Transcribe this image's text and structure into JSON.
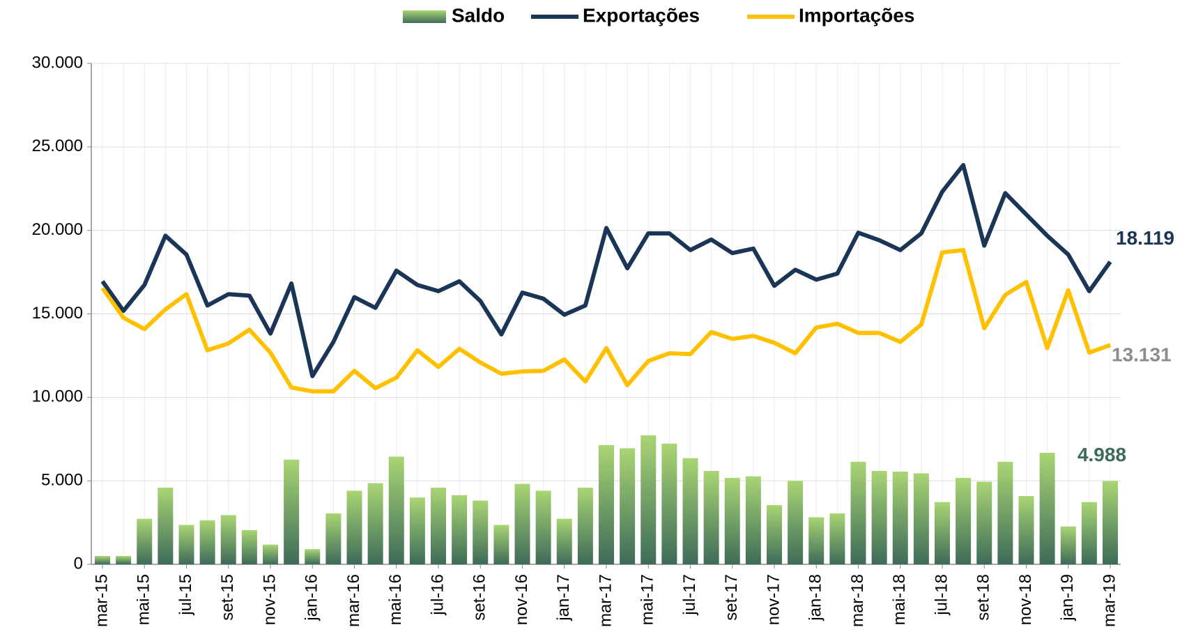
{
  "chart_data": {
    "type": "combo",
    "categories": [
      "mar-15",
      null,
      "mai-15",
      null,
      "jul-15",
      null,
      "set-15",
      null,
      "nov-15",
      null,
      "jan-16",
      null,
      "mar-16",
      null,
      "mai-16",
      null,
      "jul-16",
      null,
      "set-16",
      null,
      "nov-16",
      null,
      "jan-17",
      null,
      "mar-17",
      null,
      "mai-17",
      null,
      "jul-17",
      null,
      "set-17",
      null,
      "nov-17",
      null,
      "jan-18",
      null,
      "mar-18",
      null,
      "mai-18",
      null,
      "jul-18",
      null,
      "set-18",
      null,
      "nov-18",
      null,
      "jan-19",
      null,
      "mar-19"
    ],
    "series": [
      {
        "name": "Saldo",
        "type": "bar",
        "color": "#3d6b58",
        "color_top": "#a9d574",
        "values": [
          500,
          500,
          2730,
          4590,
          2360,
          2640,
          2950,
          2050,
          1180,
          6270,
          910,
          3050,
          4410,
          4860,
          6450,
          4000,
          4590,
          4140,
          3820,
          2360,
          4820,
          4410,
          2730,
          4590,
          7140,
          6950,
          7730,
          7230,
          6360,
          5590,
          5180,
          5270,
          3550,
          5000,
          2820,
          3050,
          6140,
          5590,
          5550,
          5450,
          3730,
          5180,
          4950,
          6140,
          4090,
          6680,
          2270,
          3730,
          4988
        ],
        "value_labels": [
          null,
          null,
          null,
          null,
          null,
          null,
          null,
          null,
          null,
          null,
          null,
          null,
          null,
          null,
          null,
          null,
          null,
          null,
          null,
          null,
          null,
          null,
          null,
          null,
          null,
          null,
          null,
          null,
          null,
          null,
          null,
          null,
          null,
          null,
          null,
          null,
          null,
          null,
          null,
          null,
          null,
          null,
          null,
          null,
          null,
          null,
          null,
          null,
          "4.988"
        ],
        "label_color": "#3d6b58"
      },
      {
        "name": "Exportações",
        "type": "line",
        "color": "#1b3557",
        "values": [
          16950,
          15180,
          16730,
          19680,
          18550,
          15500,
          16180,
          16090,
          13820,
          16820,
          11270,
          13320,
          16000,
          15360,
          17590,
          16730,
          16360,
          16950,
          15770,
          13770,
          16270,
          15910,
          14950,
          15500,
          20140,
          17730,
          19820,
          19820,
          18820,
          19450,
          18640,
          18910,
          16680,
          17640,
          17050,
          17410,
          19860,
          19410,
          18820,
          19820,
          22320,
          23910,
          19090,
          22230,
          20950,
          19680,
          18550,
          16360,
          18119
        ],
        "value_labels": [
          null,
          null,
          null,
          null,
          null,
          null,
          null,
          null,
          null,
          null,
          null,
          null,
          null,
          null,
          null,
          null,
          null,
          null,
          null,
          null,
          null,
          null,
          null,
          null,
          null,
          null,
          null,
          null,
          null,
          null,
          null,
          null,
          null,
          null,
          null,
          null,
          null,
          null,
          null,
          null,
          null,
          null,
          null,
          null,
          null,
          null,
          null,
          null,
          "18.119"
        ],
        "label_color": "#1b3557"
      },
      {
        "name": "Importações",
        "type": "line",
        "color": "#ffc000",
        "values": [
          16550,
          14770,
          14090,
          15270,
          16180,
          12820,
          13230,
          14050,
          12680,
          10590,
          10360,
          10360,
          11590,
          10550,
          11180,
          12820,
          11820,
          12910,
          12090,
          11410,
          11550,
          11590,
          12270,
          10950,
          12950,
          10730,
          12180,
          12640,
          12590,
          13910,
          13500,
          13680,
          13270,
          12640,
          14180,
          14410,
          13860,
          13860,
          13320,
          14360,
          18680,
          18820,
          14140,
          16140,
          16910,
          12950,
          16410,
          12680,
          13131
        ],
        "value_labels": [
          null,
          null,
          null,
          null,
          null,
          null,
          null,
          null,
          null,
          null,
          null,
          null,
          null,
          null,
          null,
          null,
          null,
          null,
          null,
          null,
          null,
          null,
          null,
          null,
          null,
          null,
          null,
          null,
          null,
          null,
          null,
          null,
          null,
          null,
          null,
          null,
          null,
          null,
          null,
          null,
          null,
          null,
          null,
          null,
          null,
          null,
          null,
          null,
          "13.131"
        ],
        "label_color": "#8c8c8c"
      }
    ],
    "ylim": [
      0,
      30000
    ],
    "yticks": [
      0,
      {
        "value": 5000,
        "label": "5.000"
      },
      {
        "value": 10000,
        "label": "10.000"
      },
      {
        "value": 15000,
        "label": "15.000"
      },
      {
        "value": 20000,
        "label": "20.000"
      },
      {
        "value": 25000,
        "label": "25.000"
      },
      {
        "value": 30000,
        "label": "30.000"
      }
    ],
    "grid": true,
    "legend": "top"
  }
}
